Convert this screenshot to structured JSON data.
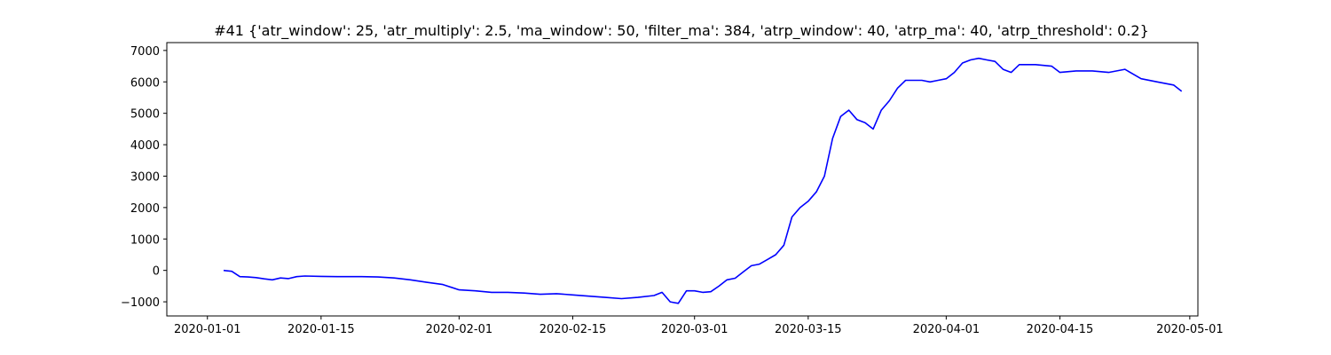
{
  "chart_data": {
    "type": "line",
    "title": "#41 {'atr_window': 25, 'atr_multiply': 2.5, 'ma_window': 50, 'filter_ma': 384, 'atrp_window': 40, 'atrp_ma': 40, 'atrp_threshold': 0.2}",
    "xlabel": "",
    "ylabel": "",
    "grid": false,
    "legend": "none",
    "xlim": [
      "2019-12-27",
      "2020-05-02"
    ],
    "ylim": [
      -1450,
      7250
    ],
    "x_ticks": [
      "2020-01-01",
      "2020-01-15",
      "2020-02-01",
      "2020-02-15",
      "2020-03-01",
      "2020-03-15",
      "2020-04-01",
      "2020-04-15",
      "2020-05-01"
    ],
    "y_ticks": [
      -1000,
      0,
      1000,
      2000,
      3000,
      4000,
      5000,
      6000,
      7000
    ],
    "y_tick_labels": [
      "−1000",
      "0",
      "1000",
      "2000",
      "3000",
      "4000",
      "5000",
      "6000",
      "7000"
    ],
    "series": [
      {
        "color": "#0000ff",
        "x": [
          "2020-01-03",
          "2020-01-04",
          "2020-01-05",
          "2020-01-06",
          "2020-01-07",
          "2020-01-08",
          "2020-01-09",
          "2020-01-10",
          "2020-01-11",
          "2020-01-12",
          "2020-01-13",
          "2020-01-15",
          "2020-01-17",
          "2020-01-20",
          "2020-01-22",
          "2020-01-24",
          "2020-01-26",
          "2020-01-28",
          "2020-01-30",
          "2020-02-01",
          "2020-02-03",
          "2020-02-05",
          "2020-02-07",
          "2020-02-09",
          "2020-02-11",
          "2020-02-13",
          "2020-02-15",
          "2020-02-17",
          "2020-02-19",
          "2020-02-21",
          "2020-02-23",
          "2020-02-25",
          "2020-02-26",
          "2020-02-27",
          "2020-02-28",
          "2020-02-29",
          "2020-03-01",
          "2020-03-02",
          "2020-03-03",
          "2020-03-04",
          "2020-03-05",
          "2020-03-06",
          "2020-03-07",
          "2020-03-08",
          "2020-03-09",
          "2020-03-10",
          "2020-03-11",
          "2020-03-12",
          "2020-03-13",
          "2020-03-14",
          "2020-03-15",
          "2020-03-16",
          "2020-03-17",
          "2020-03-18",
          "2020-03-19",
          "2020-03-20",
          "2020-03-21",
          "2020-03-22",
          "2020-03-23",
          "2020-03-24",
          "2020-03-25",
          "2020-03-26",
          "2020-03-27",
          "2020-03-28",
          "2020-03-29",
          "2020-03-30",
          "2020-03-31",
          "2020-04-01",
          "2020-04-02",
          "2020-04-03",
          "2020-04-04",
          "2020-04-05",
          "2020-04-06",
          "2020-04-07",
          "2020-04-08",
          "2020-04-09",
          "2020-04-10",
          "2020-04-12",
          "2020-04-14",
          "2020-04-15",
          "2020-04-17",
          "2020-04-19",
          "2020-04-21",
          "2020-04-23",
          "2020-04-25",
          "2020-04-27",
          "2020-04-29",
          "2020-04-30"
        ],
        "values": [
          0,
          -30,
          -200,
          -210,
          -230,
          -270,
          -300,
          -240,
          -260,
          -200,
          -180,
          -190,
          -200,
          -200,
          -210,
          -240,
          -300,
          -380,
          -450,
          -620,
          -650,
          -700,
          -700,
          -720,
          -760,
          -740,
          -780,
          -820,
          -860,
          -900,
          -860,
          -800,
          -700,
          -1000,
          -1050,
          -650,
          -650,
          -700,
          -680,
          -500,
          -300,
          -250,
          -50,
          150,
          200,
          350,
          500,
          800,
          1700,
          2000,
          2200,
          2500,
          3000,
          4200,
          4900,
          5100,
          4800,
          4700,
          4500,
          5100,
          5400,
          5800,
          6050,
          6050,
          6050,
          6000,
          6050,
          6100,
          6300,
          6600,
          6700,
          6750,
          6700,
          6650,
          6400,
          6300,
          6550,
          6550,
          6500,
          6300,
          6350,
          6350,
          6300,
          6400,
          6100,
          6000,
          5900,
          5700
        ]
      }
    ]
  }
}
